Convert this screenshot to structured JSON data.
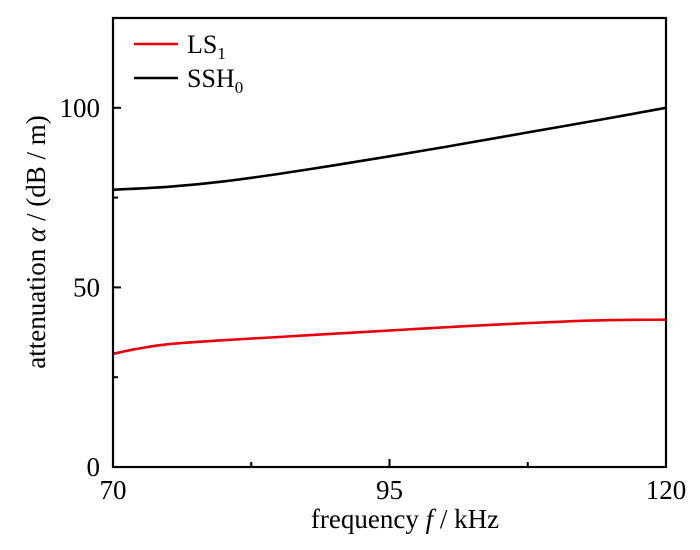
{
  "chart_data": {
    "type": "line",
    "xlabel": {
      "prefix": "frequency ",
      "symbol": "f",
      "suffix": " / kHz"
    },
    "ylabel": {
      "prefix": "attenuation ",
      "symbol": "α",
      "suffix": " / (dB / m)"
    },
    "xlim": [
      70,
      120
    ],
    "ylim": [
      0,
      125
    ],
    "x_ticks": [
      70,
      95,
      120
    ],
    "x_minor_ticks": [
      82.5,
      107.5
    ],
    "y_ticks": [
      0,
      50,
      100
    ],
    "y_minor_ticks": [
      25,
      75
    ],
    "grid": false,
    "legend_position": "top-left",
    "series": [
      {
        "name": "LS",
        "sub": "1",
        "color": "#e8000b",
        "x": [
          70,
          72,
          75,
          80,
          85,
          90,
          95,
          100,
          105,
          110,
          115,
          120
        ],
        "y": [
          31.5,
          32.8,
          34.2,
          35.3,
          36.2,
          37.1,
          38.0,
          38.9,
          39.7,
          40.4,
          40.9,
          41.0
        ]
      },
      {
        "name": "SSH",
        "sub": "0",
        "color": "#000000",
        "x": [
          70,
          75,
          80,
          85,
          90,
          95,
          100,
          105,
          110,
          115,
          120
        ],
        "y": [
          77.2,
          78.0,
          79.5,
          81.6,
          84.0,
          86.5,
          89.1,
          91.8,
          94.5,
          97.2,
          100.0
        ]
      }
    ]
  }
}
